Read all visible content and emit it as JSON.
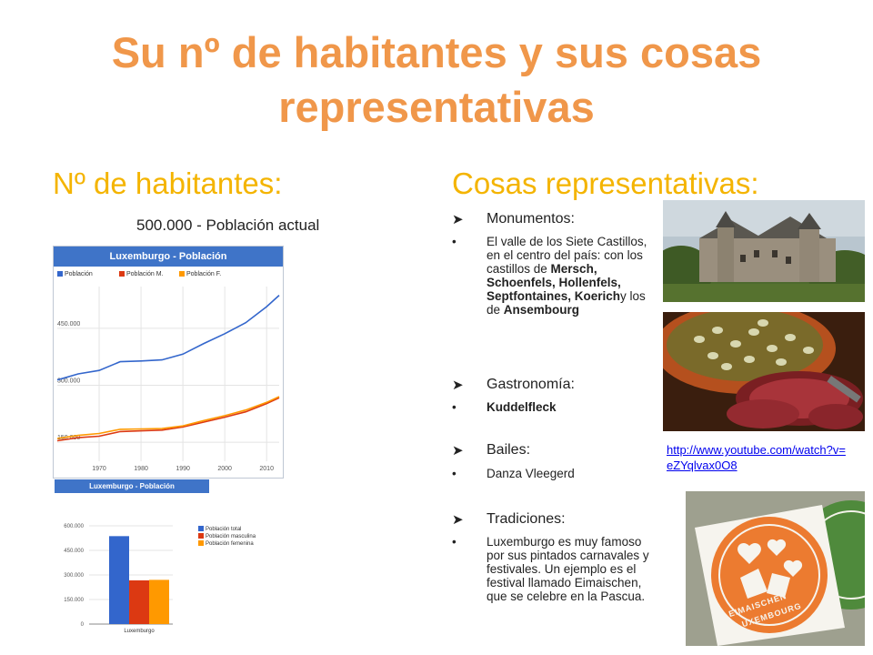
{
  "title": "Su nº de habitantes y sus cosas representativas",
  "left": {
    "heading": "Nº de habitantes:",
    "population_note": "500.000 - Población actual"
  },
  "right": {
    "heading": "Cosas representativas:",
    "sections": {
      "monumentos": {
        "label": "Monumentos:",
        "text_1": "El valle de los Siete Castillos, en el centro del país: con los castillos de ",
        "castles": "Mersch, Schoenfels, Hollenfels, Septfontaines, Koerich",
        "text_2": "y los de ",
        "last_castle": "Ansembourg"
      },
      "gastronomia": {
        "label": "Gastronomía:",
        "item": "Kuddelfleck"
      },
      "bailes": {
        "label": "Bailes:",
        "item": "Danza Vleegerd"
      },
      "tradiciones": {
        "label": "Tradiciones:",
        "item": "Luxemburgo es muy famoso por sus pintados carnavales y festivales. Un ejemplo es el festival llamado Eimaischen, que se celebre en  la Pascua."
      }
    },
    "link": "http://www.youtube.com/watch?v=eZYqlvax0O8",
    "images": [
      "castle-photo",
      "food-photo",
      "eimaischen-logo"
    ],
    "logo_text": [
      "EIMAISCHEN",
      "LUXEMBOURG"
    ]
  },
  "colors": {
    "title": "#f0974a",
    "heading": "#f4b400",
    "blue": "#3366cc",
    "red": "#dc3912",
    "orange": "#ff9900"
  },
  "chart_data": [
    {
      "type": "line",
      "title": "Luxemburgo - Población",
      "caption": "Luxemburgo - Población",
      "series": [
        {
          "name": "Población",
          "color": "#3366cc",
          "x": [
            1960,
            1965,
            1970,
            1975,
            1980,
            1985,
            1990,
            1995,
            2000,
            2005,
            2010,
            2013
          ],
          "values": [
            314,
            330,
            339,
            362,
            364,
            367,
            382,
            410,
            436,
            465,
            507,
            537
          ]
        },
        {
          "name": "Población M.",
          "color": "#dc3912",
          "x": [
            1960,
            1965,
            1970,
            1975,
            1980,
            1985,
            1990,
            1995,
            2000,
            2005,
            2010,
            2013
          ],
          "values": [
            154,
            162,
            166,
            178,
            180,
            182,
            190,
            203,
            216,
            230,
            252,
            267
          ]
        },
        {
          "name": "Población F.",
          "color": "#ff9900",
          "x": [
            1960,
            1965,
            1970,
            1975,
            1980,
            1985,
            1990,
            1995,
            2000,
            2005,
            2010,
            2013
          ],
          "values": [
            160,
            168,
            173,
            184,
            185,
            186,
            193,
            207,
            220,
            235,
            255,
            270
          ]
        }
      ],
      "y_ticks": [
        "150.000",
        "300.000",
        "450.000"
      ],
      "x_ticks": [
        "1970",
        "1980",
        "1990",
        "2000",
        "2010"
      ],
      "xlim": [
        1960,
        2013
      ],
      "ylim": [
        100,
        560
      ],
      "grid": true,
      "legend": "top-left"
    },
    {
      "type": "bar",
      "categories": [
        "Luxemburgo"
      ],
      "series": [
        {
          "name": "Población total",
          "color": "#3366cc",
          "values": [
            537
          ]
        },
        {
          "name": "Población masculina",
          "color": "#dc3912",
          "values": [
            267
          ]
        },
        {
          "name": "Población femenina",
          "color": "#ff9900",
          "values": [
            270
          ]
        }
      ],
      "y_ticks": [
        "0",
        "150.000",
        "300.000",
        "450.000",
        "600.000"
      ],
      "ylim": [
        0,
        600
      ],
      "legend": "right"
    }
  ]
}
